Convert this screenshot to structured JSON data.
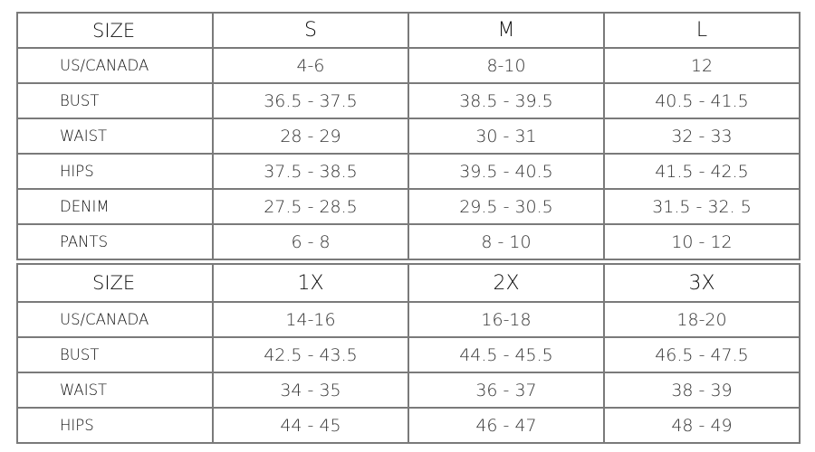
{
  "tables": [
    {
      "header": [
        "SIZE",
        "S",
        "M",
        "L"
      ],
      "rows": [
        {
          "label": "US/CANADA",
          "values": [
            "4-6",
            "8-10",
            "12"
          ]
        },
        {
          "label": "BUST",
          "values": [
            "36.5 - 37.5",
            "38.5 - 39.5",
            "40.5 - 41.5"
          ]
        },
        {
          "label": "WAIST",
          "values": [
            "28 - 29",
            "30 - 31",
            "32 - 33"
          ]
        },
        {
          "label": "HIPS",
          "values": [
            "37.5 - 38.5",
            "39.5 - 40.5",
            "41.5 - 42.5"
          ]
        },
        {
          "label": "DENIM",
          "values": [
            "27.5 - 28.5",
            "29.5 - 30.5",
            "31.5 - 32. 5"
          ]
        },
        {
          "label": "PANTS",
          "values": [
            "6 - 8",
            "8 - 10",
            "10 - 12"
          ]
        }
      ]
    },
    {
      "header": [
        "SIZE",
        "1X",
        "2X",
        "3X"
      ],
      "rows": [
        {
          "label": "US/CANADA",
          "values": [
            "14-16",
            "16-18",
            "18-20"
          ]
        },
        {
          "label": "BUST",
          "values": [
            "42.5 - 43.5",
            "44.5 - 45.5",
            "46.5 - 47.5"
          ]
        },
        {
          "label": "WAIST",
          "values": [
            "34 - 35",
            "36 - 37",
            "38 - 39"
          ]
        },
        {
          "label": "HIPS",
          "values": [
            "44 - 45",
            "46 - 47",
            "48 - 49"
          ]
        }
      ]
    }
  ]
}
